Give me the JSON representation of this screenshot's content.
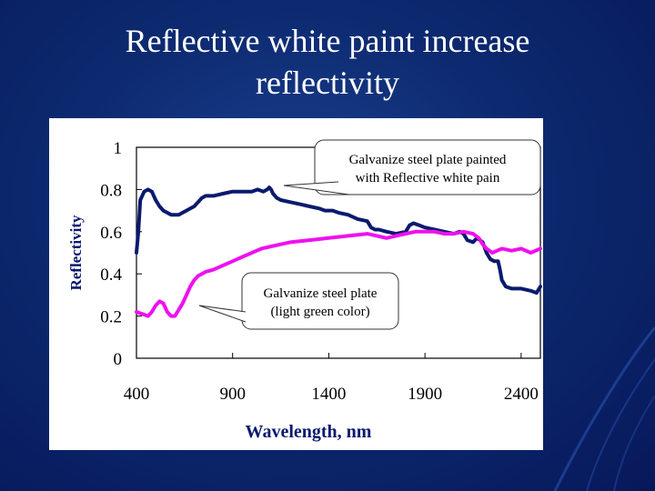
{
  "slide": {
    "title_line1": "Reflective white paint increase",
    "title_line2": "reflectivity"
  },
  "chart_data": {
    "type": "line",
    "xlabel": "Wavelength, nm",
    "ylabel": "Reflectivity",
    "xlim": [
      400,
      2500
    ],
    "ylim": [
      0,
      1
    ],
    "xticks": [
      400,
      900,
      1400,
      1900,
      2400
    ],
    "yticks": [
      0,
      0.2,
      0.4,
      0.6,
      0.8,
      1
    ],
    "ytick_labels": [
      "0",
      "0.2",
      "0.4",
      "0.6",
      "0.8",
      "1"
    ],
    "grid": false,
    "series": [
      {
        "color": "#0a1a6e",
        "x": [
          400,
          410,
          420,
          440,
          460,
          480,
          500,
          520,
          540,
          560,
          580,
          600,
          620,
          640,
          660,
          680,
          700,
          720,
          740,
          760,
          800,
          850,
          900,
          950,
          1000,
          1030,
          1060,
          1080,
          1090,
          1100,
          1110,
          1130,
          1150,
          1200,
          1250,
          1300,
          1350,
          1380,
          1400,
          1420,
          1450,
          1500,
          1550,
          1600,
          1620,
          1640,
          1660,
          1700,
          1750,
          1800,
          1820,
          1840,
          1870,
          1900,
          1950,
          2000,
          2050,
          2080,
          2100,
          2120,
          2150,
          2170,
          2200,
          2220,
          2240,
          2260,
          2280,
          2290,
          2300,
          2320,
          2350,
          2400,
          2450,
          2480,
          2500
        ],
        "y": [
          0.5,
          0.6,
          0.75,
          0.79,
          0.8,
          0.79,
          0.75,
          0.72,
          0.7,
          0.69,
          0.68,
          0.68,
          0.68,
          0.69,
          0.7,
          0.71,
          0.72,
          0.74,
          0.76,
          0.77,
          0.77,
          0.78,
          0.79,
          0.79,
          0.79,
          0.8,
          0.79,
          0.8,
          0.81,
          0.8,
          0.78,
          0.76,
          0.75,
          0.74,
          0.73,
          0.72,
          0.71,
          0.7,
          0.7,
          0.7,
          0.69,
          0.68,
          0.66,
          0.65,
          0.62,
          0.61,
          0.61,
          0.6,
          0.59,
          0.6,
          0.63,
          0.64,
          0.63,
          0.62,
          0.61,
          0.6,
          0.59,
          0.6,
          0.59,
          0.56,
          0.55,
          0.57,
          0.55,
          0.5,
          0.47,
          0.46,
          0.46,
          0.42,
          0.37,
          0.34,
          0.33,
          0.33,
          0.32,
          0.31,
          0.34
        ]
      },
      {
        "color": "#ee11ee",
        "x": [
          400,
          430,
          460,
          480,
          500,
          520,
          540,
          560,
          580,
          600,
          620,
          640,
          660,
          680,
          700,
          720,
          740,
          760,
          800,
          850,
          900,
          950,
          1000,
          1050,
          1100,
          1150,
          1200,
          1300,
          1400,
          1500,
          1600,
          1650,
          1700,
          1750,
          1800,
          1850,
          1900,
          1950,
          2000,
          2050,
          2100,
          2150,
          2180,
          2200,
          2220,
          2250,
          2300,
          2350,
          2400,
          2450,
          2500
        ],
        "y": [
          0.22,
          0.21,
          0.2,
          0.22,
          0.25,
          0.27,
          0.26,
          0.22,
          0.2,
          0.2,
          0.23,
          0.26,
          0.3,
          0.34,
          0.37,
          0.39,
          0.4,
          0.41,
          0.42,
          0.44,
          0.46,
          0.48,
          0.5,
          0.52,
          0.53,
          0.54,
          0.55,
          0.56,
          0.57,
          0.58,
          0.59,
          0.58,
          0.57,
          0.58,
          0.59,
          0.6,
          0.6,
          0.6,
          0.59,
          0.59,
          0.6,
          0.59,
          0.57,
          0.54,
          0.52,
          0.5,
          0.52,
          0.51,
          0.52,
          0.5,
          0.52
        ]
      }
    ],
    "annotations": [
      {
        "lines": [
          "Galvanize steel plate painted",
          "with Reflective white pain"
        ]
      },
      {
        "lines": [
          "Galvanize steel plate",
          "(light green color)"
        ]
      }
    ]
  }
}
